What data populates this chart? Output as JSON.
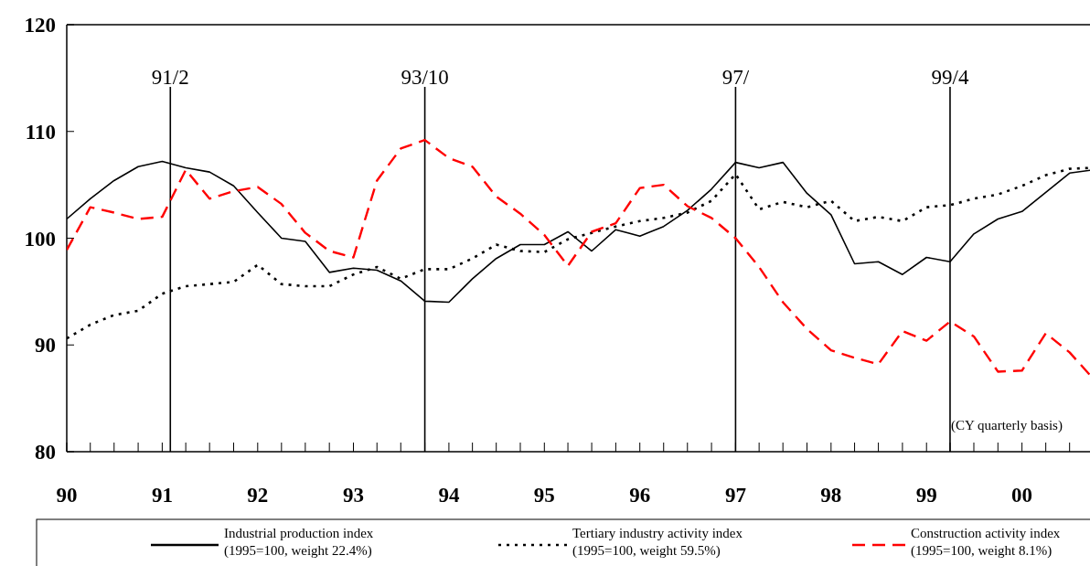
{
  "chart_data": {
    "type": "line",
    "x": [
      "1990-01",
      "1990-04",
      "1990-07",
      "1990-10",
      "1991-01",
      "1991-04",
      "1991-07",
      "1991-10",
      "1992-01",
      "1992-04",
      "1992-07",
      "1992-10",
      "1993-01",
      "1993-04",
      "1993-07",
      "1993-10",
      "1994-01",
      "1994-04",
      "1994-07",
      "1994-10",
      "1995-01",
      "1995-04",
      "1995-07",
      "1995-10",
      "1996-01",
      "1996-04",
      "1996-07",
      "1996-10",
      "1997-01",
      "1997-04",
      "1997-07",
      "1997-10",
      "1998-01",
      "1998-04",
      "1998-07",
      "1998-10",
      "1999-01",
      "1999-04",
      "1999-07",
      "1999-10",
      "2000-01",
      "2000-04",
      "2000-07",
      "2000-10"
    ],
    "series": [
      {
        "name": "Industrial production index\n(1995=100, weight 22.4%)",
        "color": "#000000",
        "line_style": "solid",
        "values": [
          101.8,
          103.7,
          105.4,
          106.7,
          107.2,
          106.6,
          106.2,
          104.9,
          102.4,
          100.0,
          99.7,
          96.8,
          97.2,
          97.0,
          96.0,
          94.1,
          94.0,
          96.2,
          98.1,
          99.4,
          99.4,
          100.6,
          98.8,
          100.8,
          100.2,
          101.1,
          102.6,
          104.6,
          107.1,
          106.6,
          107.1,
          104.2,
          102.2,
          97.6,
          97.8,
          96.6,
          98.2,
          97.8,
          100.4,
          101.8,
          102.5,
          104.3,
          106.1,
          106.4
        ]
      },
      {
        "name": "Tertiary industry activity index\n(1995=100, weight 59.5%)",
        "color": "#000000",
        "line_style": "dotted",
        "values": [
          90.6,
          91.9,
          92.8,
          93.2,
          94.8,
          95.5,
          95.7,
          95.9,
          97.5,
          95.7,
          95.5,
          95.5,
          96.6,
          97.3,
          96.2,
          97.1,
          97.1,
          98.1,
          99.4,
          98.8,
          98.7,
          99.9,
          100.5,
          101.1,
          101.6,
          101.9,
          102.4,
          103.5,
          106.0,
          102.7,
          103.4,
          102.9,
          103.5,
          101.6,
          102.0,
          101.6,
          102.9,
          103.1,
          103.7,
          104.1,
          104.9,
          105.9,
          106.5,
          106.6
        ]
      },
      {
        "name": "Construction activity index\n(1995=100, weight 8.1%)",
        "color": "#ff0000",
        "line_style": "dashed",
        "values": [
          98.9,
          102.9,
          102.4,
          101.8,
          102.0,
          106.4,
          103.7,
          104.4,
          104.8,
          103.2,
          100.5,
          98.8,
          98.2,
          105.4,
          108.4,
          109.2,
          107.5,
          106.7,
          103.9,
          102.3,
          100.3,
          97.4,
          100.6,
          101.4,
          104.7,
          105.0,
          103.0,
          101.9,
          100.0,
          97.3,
          94.0,
          91.5,
          89.5,
          88.8,
          88.2,
          91.3,
          90.4,
          92.2,
          90.8,
          87.5,
          87.6,
          91.1,
          89.3,
          86.8
        ]
      }
    ],
    "xlim": [
      "1990-01",
      "2000-10"
    ],
    "xticks": [
      {
        "value": "1990-01",
        "label": "90"
      },
      {
        "value": "1990-04",
        "label": null
      },
      {
        "value": "1990-07",
        "label": null
      },
      {
        "value": "1990-10",
        "label": null
      },
      {
        "value": "1991-01",
        "label": "91"
      },
      {
        "value": "1991-04",
        "label": null
      },
      {
        "value": "1991-07",
        "label": null
      },
      {
        "value": "1991-10",
        "label": null
      },
      {
        "value": "1992-01",
        "label": "92"
      },
      {
        "value": "1992-04",
        "label": null
      },
      {
        "value": "1992-07",
        "label": null
      },
      {
        "value": "1992-10",
        "label": null
      },
      {
        "value": "1993-01",
        "label": "93"
      },
      {
        "value": "1993-04",
        "label": null
      },
      {
        "value": "1993-07",
        "label": null
      },
      {
        "value": "1993-10",
        "label": null
      },
      {
        "value": "1994-01",
        "label": "94"
      },
      {
        "value": "1994-04",
        "label": null
      },
      {
        "value": "1994-07",
        "label": null
      },
      {
        "value": "1994-10",
        "label": null
      },
      {
        "value": "1995-01",
        "label": "95"
      },
      {
        "value": "1995-04",
        "label": null
      },
      {
        "value": "1995-07",
        "label": null
      },
      {
        "value": "1995-10",
        "label": null
      },
      {
        "value": "1996-01",
        "label": "96"
      },
      {
        "value": "1996-04",
        "label": null
      },
      {
        "value": "1996-07",
        "label": null
      },
      {
        "value": "1996-10",
        "label": null
      },
      {
        "value": "1997-01",
        "label": "97"
      },
      {
        "value": "1997-04",
        "label": null
      },
      {
        "value": "1997-07",
        "label": null
      },
      {
        "value": "1997-10",
        "label": null
      },
      {
        "value": "1998-01",
        "label": "98"
      },
      {
        "value": "1998-04",
        "label": null
      },
      {
        "value": "1998-07",
        "label": null
      },
      {
        "value": "1998-10",
        "label": null
      },
      {
        "value": "1999-01",
        "label": "99"
      },
      {
        "value": "1999-04",
        "label": null
      },
      {
        "value": "1999-07",
        "label": null
      },
      {
        "value": "1999-10",
        "label": null
      },
      {
        "value": "2000-01",
        "label": "00"
      },
      {
        "value": "2000-04",
        "label": null
      },
      {
        "value": "2000-07",
        "label": null
      }
    ],
    "ylim": [
      80,
      120
    ],
    "yticks": [
      80,
      90,
      100,
      110,
      120
    ],
    "ref_lines": [
      {
        "axis": "x",
        "value": "1991-02",
        "label": "91/2"
      },
      {
        "axis": "x",
        "value": "1993-10",
        "label": "93/10"
      },
      {
        "axis": "x",
        "value": "1997-01",
        "label": "97/"
      },
      {
        "axis": "x",
        "value": "1999-04",
        "label": "99/4"
      }
    ],
    "annotations": [
      "(CY quarterly basis)"
    ],
    "legend": "bottom",
    "grid": false,
    "marker": "none"
  }
}
